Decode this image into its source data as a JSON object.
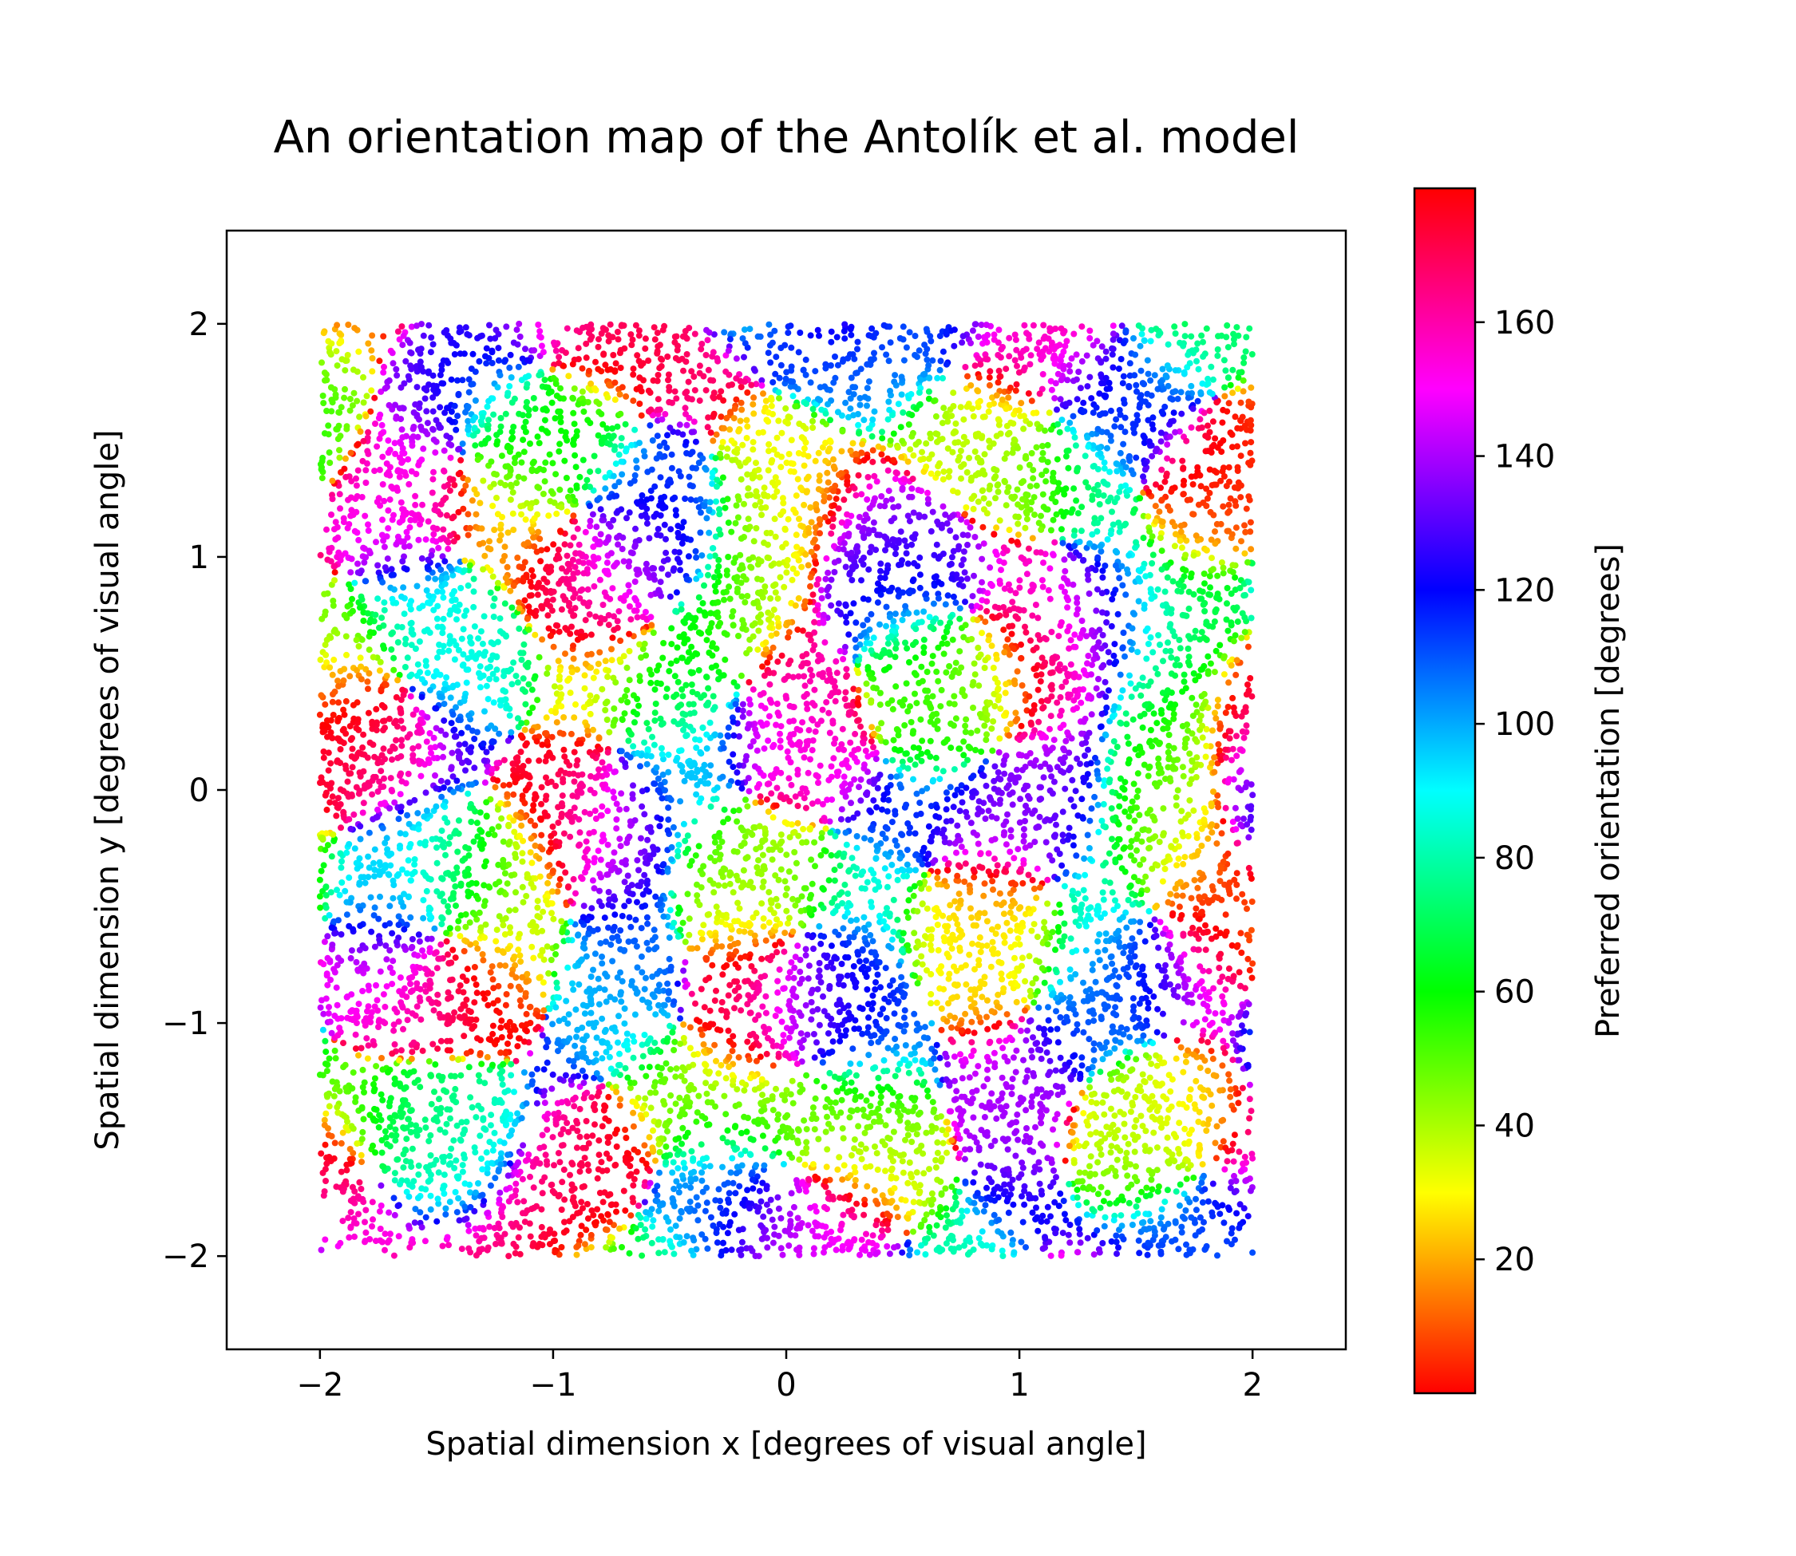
{
  "chart_data": {
    "type": "scatter",
    "title": "An orientation map of the Antolík et al. model",
    "xlabel": "Spatial dimension x [degrees of visual angle]",
    "ylabel": "Spatial dimension y [degrees of visual angle]",
    "xlim": [
      -2.4,
      2.4
    ],
    "ylim": [
      -2.4,
      2.4
    ],
    "xticks": [
      -2,
      -1,
      0,
      1,
      2
    ],
    "yticks": [
      -2,
      -1,
      0,
      1,
      2
    ],
    "xtick_labels": [
      "−2",
      "−1",
      "0",
      "1",
      "2"
    ],
    "ytick_labels": [
      "−2",
      "−1",
      "0",
      "1",
      "2"
    ],
    "point_region": {
      "x": [
        -2,
        2
      ],
      "y": [
        -2,
        2
      ]
    },
    "color_by": "preferred orientation (degrees), cyclic hsv colormap",
    "approx_point_count": 12000,
    "colorbar": {
      "label": "Preferred orientation [degrees]",
      "range": [
        0,
        180
      ],
      "ticks": [
        20,
        40,
        60,
        80,
        100,
        120,
        140,
        160
      ],
      "tick_labels": [
        "20",
        "40",
        "60",
        "80",
        "100",
        "120",
        "140",
        "160"
      ],
      "colormap": "hsv"
    },
    "grid": false
  }
}
